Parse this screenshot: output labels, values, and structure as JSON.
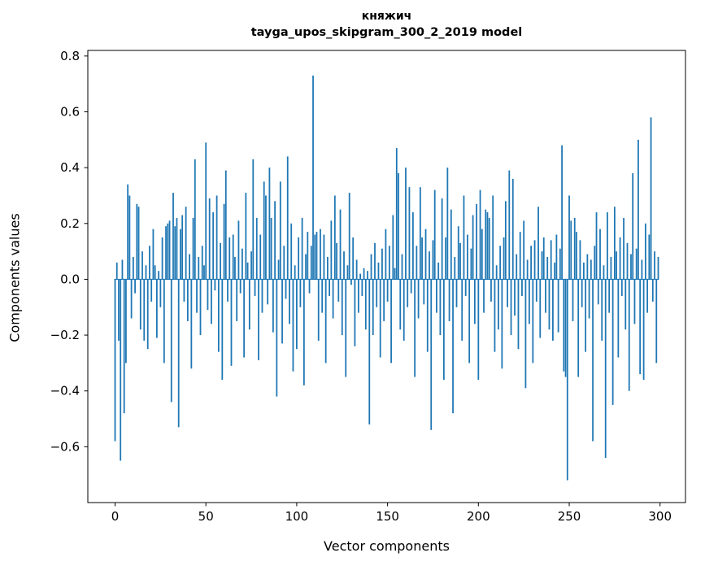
{
  "chart_data": {
    "type": "bar",
    "title_line1": "княжич",
    "title_line2": "tayga_upos_skipgram_300_2_2019 model",
    "xlabel": "Vector components",
    "ylabel": "Components values",
    "bar_color": "#1f77b4",
    "spine_color": "#000000",
    "xlim": [
      -15,
      314
    ],
    "ylim": [
      -0.8,
      0.82
    ],
    "xticks": [
      0,
      50,
      100,
      150,
      200,
      250,
      300
    ],
    "yticks": [
      -0.6,
      -0.4,
      -0.2,
      0.0,
      0.2,
      0.4,
      0.6,
      0.8
    ],
    "legend": "none",
    "grid": false,
    "values": [
      -0.58,
      0.06,
      -0.22,
      -0.65,
      0.07,
      -0.48,
      -0.3,
      0.34,
      0.3,
      -0.14,
      0.08,
      -0.05,
      0.27,
      0.26,
      -0.18,
      0.1,
      -0.22,
      0.05,
      -0.25,
      0.12,
      -0.08,
      0.18,
      0.05,
      -0.21,
      0.03,
      -0.1,
      0.15,
      -0.3,
      0.19,
      0.2,
      0.21,
      -0.44,
      0.31,
      0.19,
      0.22,
      -0.53,
      0.18,
      0.23,
      -0.08,
      0.26,
      -0.15,
      0.09,
      -0.32,
      0.22,
      0.43,
      -0.12,
      0.08,
      -0.2,
      0.12,
      0.05,
      0.49,
      -0.11,
      0.29,
      -0.16,
      0.24,
      -0.04,
      0.3,
      -0.26,
      0.13,
      -0.36,
      0.27,
      0.39,
      -0.08,
      0.15,
      -0.31,
      0.16,
      0.08,
      -0.15,
      0.21,
      -0.05,
      0.11,
      -0.28,
      0.31,
      0.06,
      -0.18,
      0.1,
      0.43,
      -0.06,
      0.22,
      -0.29,
      0.16,
      -0.12,
      0.35,
      0.3,
      -0.09,
      0.4,
      0.22,
      -0.19,
      0.28,
      -0.42,
      0.07,
      0.35,
      -0.23,
      0.12,
      -0.07,
      0.44,
      -0.16,
      0.2,
      -0.33,
      0.05,
      -0.25,
      0.15,
      -0.1,
      0.22,
      -0.38,
      0.09,
      0.17,
      -0.05,
      0.12,
      0.73,
      0.16,
      0.17,
      -0.22,
      0.18,
      -0.12,
      0.16,
      -0.3,
      0.08,
      -0.06,
      0.21,
      -0.14,
      0.3,
      0.13,
      -0.08,
      0.25,
      -0.2,
      0.1,
      -0.35,
      0.05,
      0.31,
      -0.02,
      0.15,
      -0.24,
      0.07,
      -0.12,
      0.02,
      -0.06,
      0.04,
      -0.18,
      0.03,
      -0.52,
      0.09,
      -0.2,
      0.13,
      -0.1,
      0.06,
      -0.28,
      0.11,
      -0.15,
      0.18,
      -0.08,
      0.12,
      -0.3,
      0.23,
      0.04,
      0.47,
      0.38,
      -0.18,
      0.09,
      -0.22,
      0.4,
      -0.1,
      0.33,
      -0.05,
      0.24,
      -0.35,
      0.12,
      -0.14,
      0.33,
      0.15,
      -0.09,
      0.18,
      -0.26,
      0.1,
      -0.54,
      0.14,
      0.32,
      -0.12,
      0.06,
      -0.2,
      0.29,
      -0.36,
      0.15,
      0.4,
      -0.15,
      0.25,
      -0.48,
      0.08,
      -0.1,
      0.19,
      0.13,
      -0.22,
      0.3,
      -0.06,
      0.16,
      -0.3,
      0.11,
      0.23,
      -0.16,
      0.27,
      -0.36,
      0.32,
      0.18,
      -0.12,
      0.25,
      0.24,
      0.22,
      -0.08,
      0.3,
      -0.26,
      0.05,
      -0.18,
      0.12,
      -0.32,
      0.15,
      0.28,
      -0.1,
      0.39,
      -0.2,
      0.36,
      -0.13,
      0.09,
      -0.25,
      0.17,
      -0.06,
      0.21,
      -0.39,
      0.07,
      -0.16,
      0.12,
      -0.3,
      0.14,
      -0.08,
      0.26,
      -0.21,
      0.1,
      0.15,
      -0.12,
      0.08,
      -0.18,
      0.14,
      -0.22,
      0.06,
      0.16,
      -0.19,
      0.11,
      0.48,
      -0.33,
      -0.35,
      -0.72,
      0.3,
      0.21,
      -0.15,
      0.22,
      0.17,
      -0.35,
      0.14,
      -0.1,
      0.06,
      -0.26,
      0.09,
      -0.14,
      0.07,
      -0.58,
      0.12,
      0.24,
      -0.09,
      0.18,
      -0.22,
      0.05,
      -0.64,
      0.24,
      -0.12,
      0.08,
      -0.45,
      0.26,
      0.1,
      -0.28,
      0.15,
      -0.06,
      0.22,
      -0.18,
      0.13,
      -0.4,
      0.09,
      0.38,
      -0.16,
      0.11,
      0.5,
      -0.34,
      0.07,
      -0.36,
      0.2,
      -0.12,
      0.16,
      0.58,
      -0.08,
      0.1,
      -0.3,
      0.08
    ]
  }
}
